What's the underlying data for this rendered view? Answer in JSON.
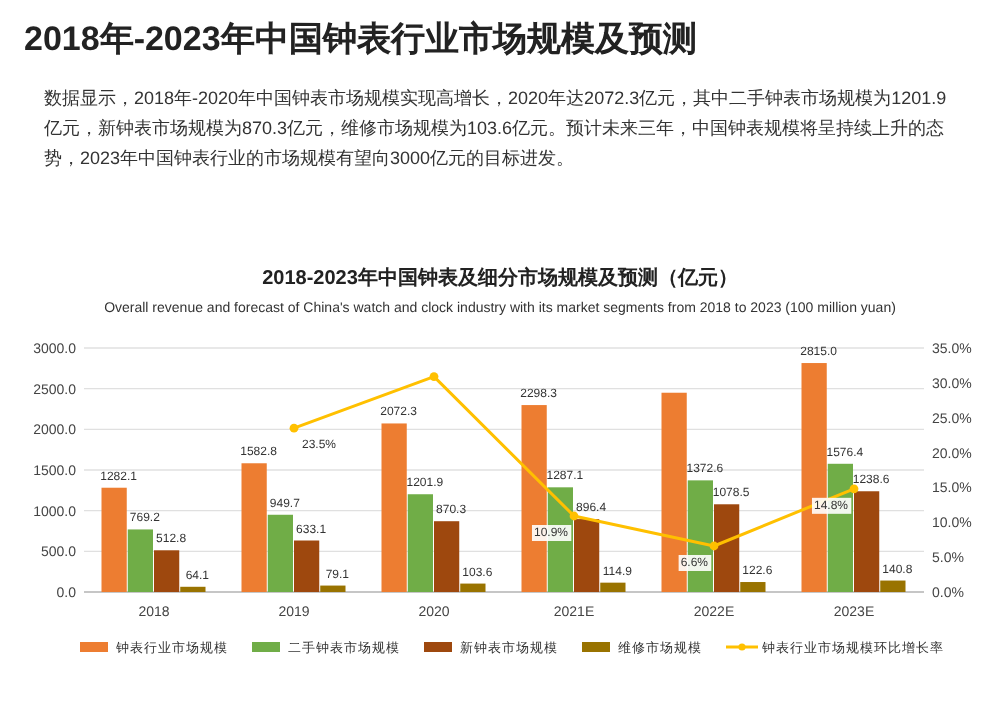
{
  "chart_data": {
    "type": "bar",
    "title": "2018-2023年中国钟表及细分市场规模及预测（亿元）",
    "subtitle": "Overall revenue and forecast of China's watch and clock industry with its market segments from 2018 to 2023 (100 million yuan)",
    "annotations": [
      "2018年-2023年中国钟表行业市场规模及预测",
      "数据显示，2018年-2020年中国钟表市场规模实现高增长，2020年达2072.3亿元，其中二手钟表市场规模为1201.9亿元，新钟表市场规模为870.3亿元，维修市场规模为103.6亿元。预计未来三年，中国钟表规模将呈持续上升的态势，2023年中国钟表行业的市场规模有望向3000亿元的目标进发。"
    ],
    "categories": [
      "2018",
      "2019",
      "2020",
      "2021E",
      "2022E",
      "2023E"
    ],
    "ylim": [
      0,
      3000
    ],
    "yticks": [
      {
        "value": 0,
        "label": "0.0"
      },
      {
        "value": 500,
        "label": "500.0"
      },
      {
        "value": 1000,
        "label": "1000.0"
      },
      {
        "value": 1500,
        "label": "1500.0"
      },
      {
        "value": 2000,
        "label": "2000.0"
      },
      {
        "value": 2500,
        "label": "2500.0"
      },
      {
        "value": 3000,
        "label": "3000.0"
      }
    ],
    "y2lim": [
      0,
      35
    ],
    "y2ticks": [
      {
        "value": 0,
        "label": "0.0%"
      },
      {
        "value": 5,
        "label": "5.0%"
      },
      {
        "value": 10,
        "label": "10.0%"
      },
      {
        "value": 15,
        "label": "15.0%"
      },
      {
        "value": 20,
        "label": "20.0%"
      },
      {
        "value": 25,
        "label": "25.0%"
      },
      {
        "value": 30,
        "label": "30.0%"
      },
      {
        "value": 35,
        "label": "35.0%"
      }
    ],
    "grid": "y",
    "legend": "bottom",
    "series": [
      {
        "name": "钟表行业市场规模",
        "color": "#ed7d31",
        "values": [
          1282.1,
          1582.8,
          2072.3,
          2298.3,
          2450,
          2815.0
        ],
        "value_labels": [
          "1282.1",
          "1582.8",
          "2072.3",
          "2298.3",
          null,
          "2815.0"
        ]
      },
      {
        "name": "二手钟表市场规模",
        "color": "#70ad47",
        "values": [
          769.2,
          949.7,
          1201.9,
          1287.1,
          1372.6,
          1576.4
        ],
        "value_labels": [
          "769.2",
          "949.7",
          "1201.9",
          "1287.1",
          "1372.6",
          "1576.4"
        ]
      },
      {
        "name": "新钟表市场规模",
        "color": "#9e480e",
        "values": [
          512.8,
          633.1,
          870.3,
          896.4,
          1078.5,
          1238.6
        ],
        "value_labels": [
          "512.8",
          "633.1",
          "870.3",
          "896.4",
          "1078.5",
          "1238.6"
        ]
      },
      {
        "name": "维修市场规模",
        "color": "#997300",
        "values": [
          64.1,
          79.1,
          103.6,
          114.9,
          122.6,
          140.8
        ],
        "value_labels": [
          "64.1",
          "79.1",
          "103.6",
          "114.9",
          "122.6",
          "140.8"
        ]
      },
      {
        "name": "钟表行业市场规模环比增长率",
        "type": "line",
        "axis": "y2",
        "marker": "circle",
        "color": "#ffc000",
        "values": [
          null,
          23.5,
          30.9,
          10.9,
          6.6,
          14.8
        ],
        "value_labels": [
          null,
          "23.5%",
          null,
          "10.9%",
          "6.6%",
          "14.8%"
        ]
      }
    ]
  }
}
